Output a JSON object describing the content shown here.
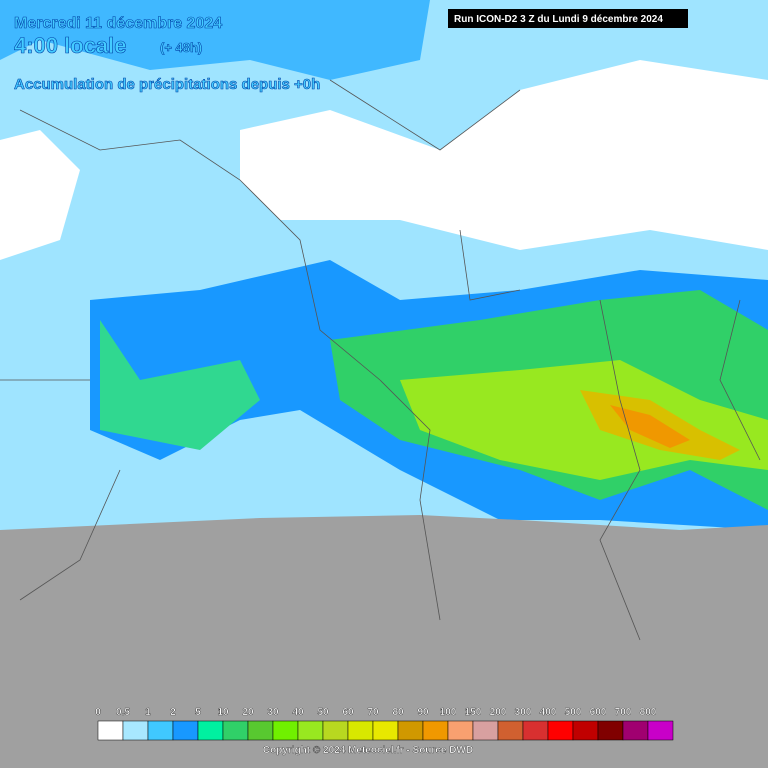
{
  "header": {
    "date": "Mercredi 11 décembre 2024",
    "time": "4:00 locale",
    "lead": "(+ 48h)",
    "subtitle": "Accumulation de précipitations depuis +0h"
  },
  "run_info": "Run ICON-D2 3 Z du Lundi 9 décembre 2024",
  "legend": {
    "items": [
      {
        "value": 0,
        "color": "#ffffff"
      },
      {
        "value": 0.5,
        "color": "#a8e8ff"
      },
      {
        "value": 1,
        "color": "#40c8ff"
      },
      {
        "value": 2,
        "color": "#1898ff"
      },
      {
        "value": 5,
        "color": "#00f0a0"
      },
      {
        "value": 10,
        "color": "#30d068"
      },
      {
        "value": 20,
        "color": "#58c830"
      },
      {
        "value": 30,
        "color": "#70f000"
      },
      {
        "value": 40,
        "color": "#98e820"
      },
      {
        "value": 50,
        "color": "#b8d820"
      },
      {
        "value": 60,
        "color": "#d8e800"
      },
      {
        "value": 70,
        "color": "#e8e800"
      },
      {
        "value": 80,
        "color": "#d09800"
      },
      {
        "value": 90,
        "color": "#f09800"
      },
      {
        "value": 100,
        "color": "#f8a070"
      },
      {
        "value": 150,
        "color": "#d8a0a0"
      },
      {
        "value": 200,
        "color": "#d06030"
      },
      {
        "value": 300,
        "color": "#d83030"
      },
      {
        "value": 400,
        "color": "#ff0000"
      },
      {
        "value": 500,
        "color": "#c00000"
      },
      {
        "value": 600,
        "color": "#800000"
      },
      {
        "value": 700,
        "color": "#a00070"
      },
      {
        "value": 800,
        "color": "#c800c8"
      }
    ]
  },
  "copyright": "Copyright © 2024 Meteociel.fr - Source DWD"
}
